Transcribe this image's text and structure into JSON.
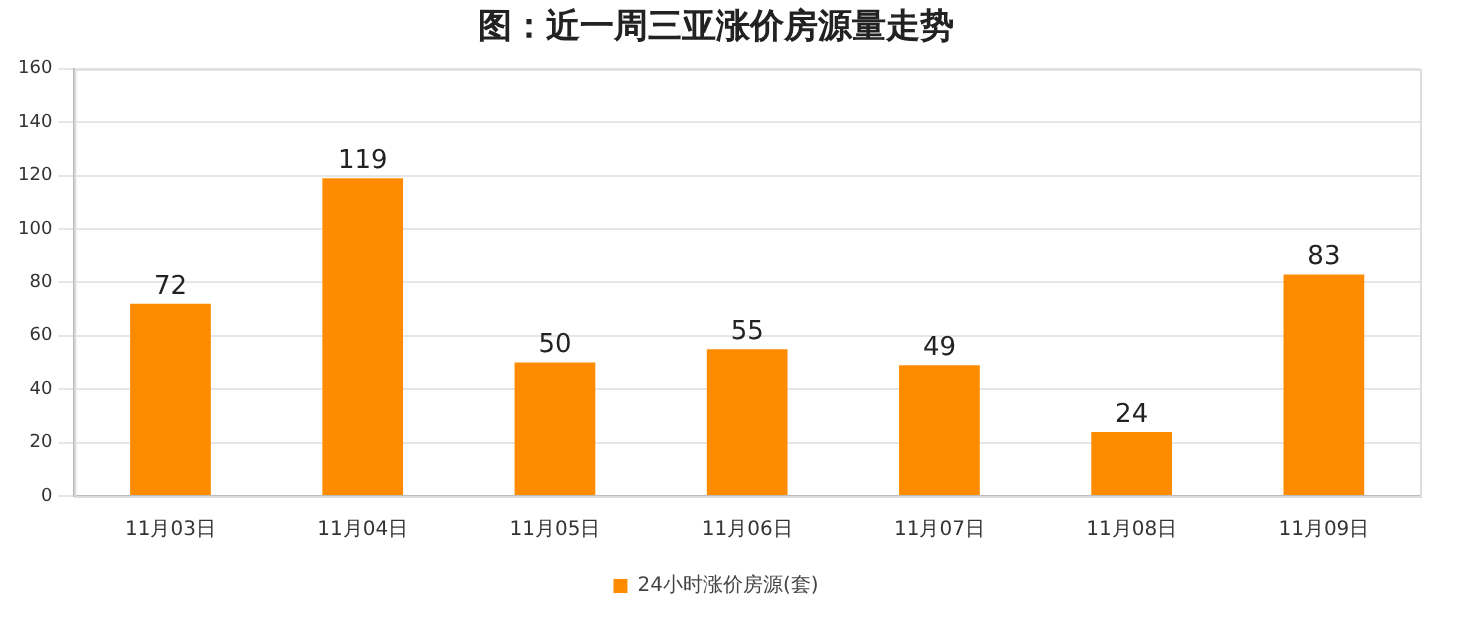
{
  "chart_data": {
    "type": "bar",
    "title": "图：近一周三亚涨价房源量走势",
    "categories": [
      "11月03日",
      "11月04日",
      "11月05日",
      "11月06日",
      "11月07日",
      "11月08日",
      "11月09日"
    ],
    "series": [
      {
        "name": "24小时涨价房源(套)",
        "color": "#ff8c00",
        "values": [
          72,
          119,
          50,
          55,
          49,
          24,
          83
        ]
      }
    ],
    "ylim": [
      0,
      160
    ],
    "yticks": [
      0,
      20,
      40,
      60,
      80,
      100,
      120,
      140,
      160
    ],
    "grid": "y",
    "legend": "bottom",
    "data_labels": true
  }
}
